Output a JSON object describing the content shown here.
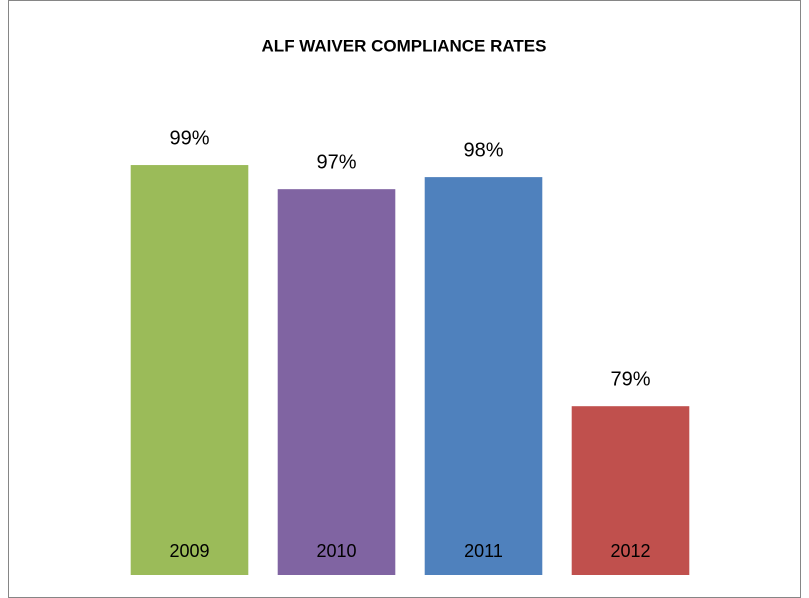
{
  "chart_data": {
    "type": "bar",
    "title": "ALF WAIVER COMPLIANCE RATES",
    "categories": [
      "2009",
      "2010",
      "2011",
      "2012"
    ],
    "values": [
      99,
      97,
      98,
      79
    ],
    "value_labels": [
      "99%",
      "97%",
      "98%",
      "79%"
    ],
    "colors": [
      "#9bbb59",
      "#8064a2",
      "#4f81bd",
      "#c0504d"
    ],
    "ylim": [
      65,
      100
    ]
  }
}
